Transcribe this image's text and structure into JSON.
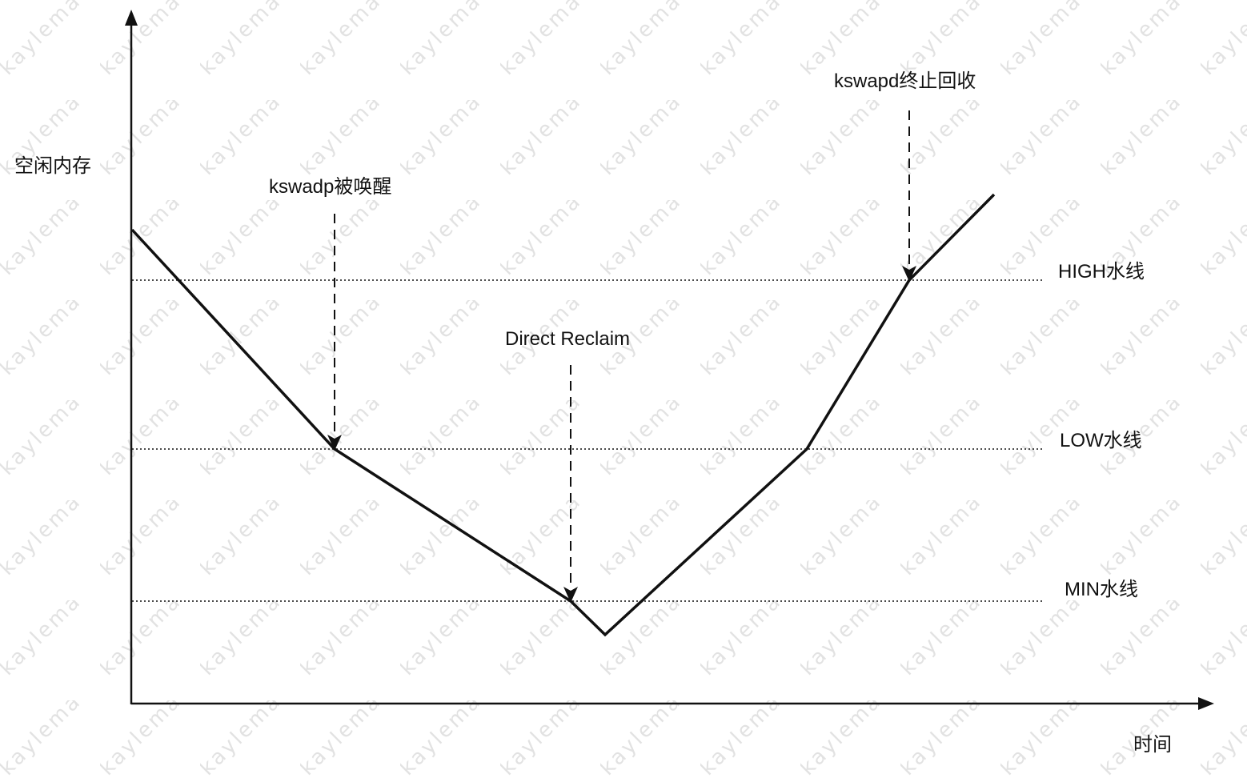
{
  "watermark": "kaylema",
  "axes": {
    "y_label": "空闲内存",
    "x_label": "时间"
  },
  "watermarks": [
    {
      "name": "high-watermark",
      "label": "HIGH水线"
    },
    {
      "name": "low-watermark",
      "label": "LOW水线"
    },
    {
      "name": "min-watermark",
      "label": "MIN水线"
    }
  ],
  "events": [
    {
      "name": "kswapd-wakeup",
      "label": "kswadp被唤醒"
    },
    {
      "name": "direct-reclaim",
      "label": "Direct Reclaim"
    },
    {
      "name": "kswapd-stop",
      "label": "kswapd终止回收"
    }
  ],
  "colors": {
    "line": "#111111",
    "watermark_text": "#e2e2e2"
  }
}
